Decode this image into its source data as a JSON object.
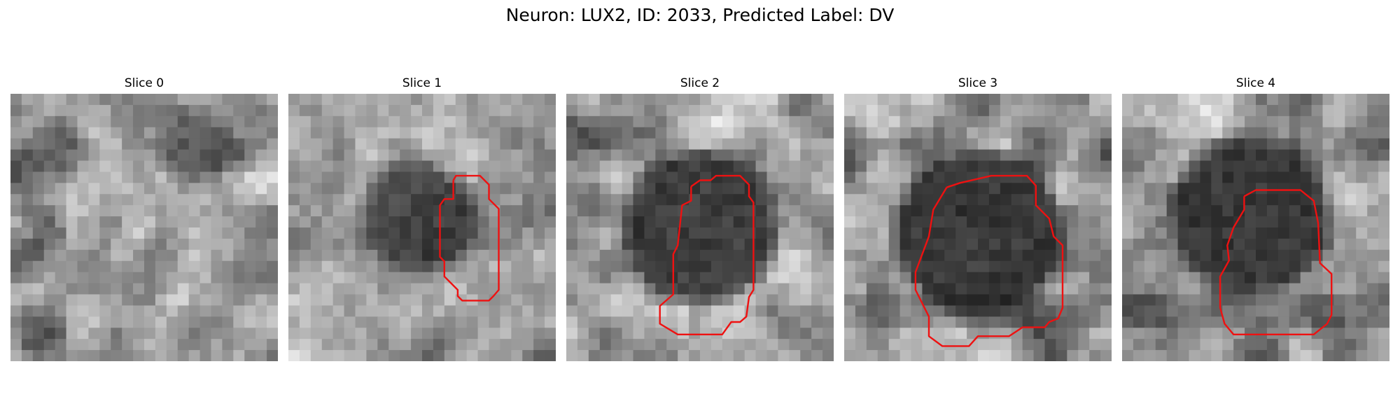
{
  "figure": {
    "title": "Neuron: LUX2, ID: 2033, Predicted Label: DV"
  },
  "panels": [
    {
      "title": "Slice 0"
    },
    {
      "title": "Slice 1"
    },
    {
      "title": "Slice 2"
    },
    {
      "title": "Slice 3"
    },
    {
      "title": "Slice 4"
    }
  ],
  "colors": {
    "contour": "#ee1111",
    "background": "#ffffff"
  }
}
